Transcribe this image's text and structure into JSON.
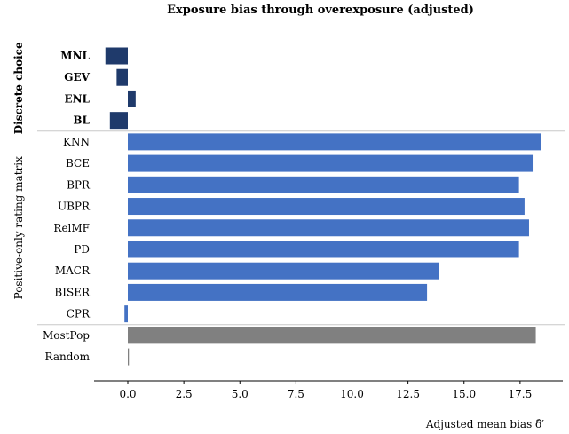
{
  "chart_data": {
    "type": "bar",
    "orientation": "horizontal",
    "title": "Exposure bias through overexposure (adjusted)",
    "xlabel": "Adjusted mean bias δ̂′",
    "xlim": [
      -1.5,
      19.5
    ],
    "xticks": [
      "0.0",
      "2.5",
      "5.0",
      "7.5",
      "10.0",
      "12.5",
      "15.0",
      "17.5"
    ],
    "grid": false,
    "groups": [
      {
        "name": "Discrete choice",
        "color": "#1f3a6b",
        "bold": true,
        "categories": [
          "MNL",
          "GEV",
          "ENL",
          "BL"
        ],
        "values": [
          -1.0,
          -0.5,
          0.35,
          -0.8
        ]
      },
      {
        "name": "Positive-only rating matrix",
        "color": "#4472c4",
        "bold": false,
        "categories": [
          "KNN",
          "BCE",
          "BPR",
          "UBPR",
          "RelMF",
          "PD",
          "MACR",
          "BISER",
          "CPR"
        ],
        "values": [
          18.45,
          18.1,
          17.45,
          17.7,
          17.9,
          17.45,
          13.9,
          13.35,
          -0.15
        ]
      },
      {
        "name": "",
        "color": "#808080",
        "bold": false,
        "categories": [
          "MostPop",
          "Random"
        ],
        "values": [
          18.2,
          0.05
        ]
      }
    ]
  }
}
